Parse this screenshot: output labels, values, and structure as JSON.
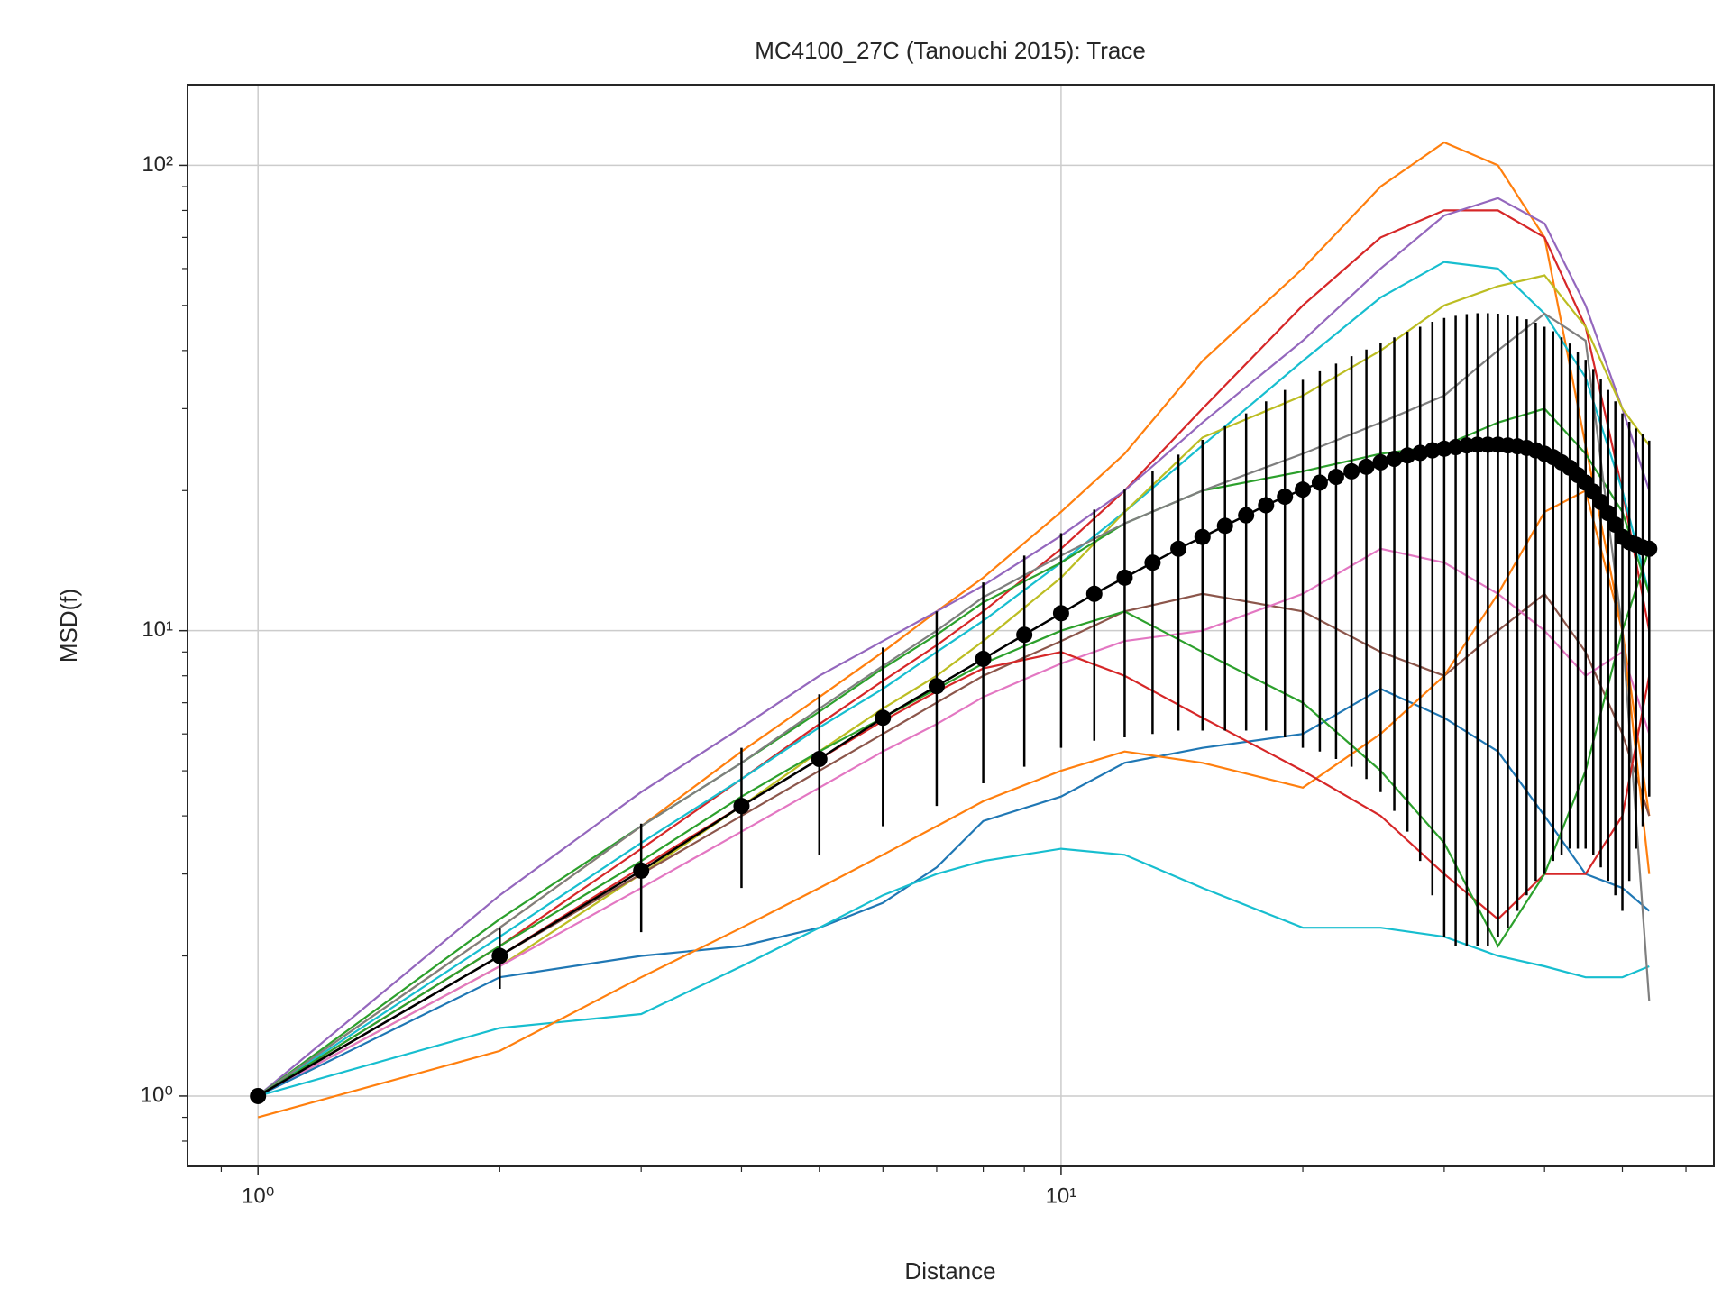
{
  "chart_data": {
    "type": "line",
    "title": "MC4100_27C (Tanouchi 2015): Trace",
    "x_label": "Distance",
    "y_label": "MSD(f)",
    "xscale": "log",
    "yscale": "log",
    "grid": true,
    "xlim": [
      0.817,
      65
    ],
    "ylim": [
      0.706,
      149
    ],
    "xticks": [
      {
        "value": 1,
        "label": "10⁰"
      },
      {
        "value": 10,
        "label": "10¹"
      }
    ],
    "yticks": [
      {
        "value": 1,
        "label": "10⁰"
      },
      {
        "value": 10,
        "label": "10¹"
      },
      {
        "value": 100,
        "label": "10²"
      }
    ],
    "xminorticks": [
      0.9,
      2,
      3,
      4,
      5,
      6,
      7,
      8,
      9,
      20,
      30,
      40,
      50,
      60
    ],
    "yminorticks": [
      0.8,
      0.9,
      2,
      3,
      4,
      5,
      6,
      7,
      8,
      9,
      20,
      30,
      40,
      50,
      60,
      70,
      80,
      90
    ],
    "x": [
      1,
      2,
      3,
      4,
      5,
      6,
      7,
      8,
      10,
      12,
      15,
      20,
      25,
      30,
      35,
      40,
      45,
      50,
      54
    ],
    "series": [
      {
        "color": "#ff7f0e",
        "values": [
          1,
          2.3,
          3.8,
          5.5,
          7.2,
          9,
          11,
          13,
          18,
          24,
          38,
          60,
          90,
          112,
          100,
          70,
          25,
          10,
          4
        ]
      },
      {
        "color": "#d62728",
        "values": [
          1,
          2.1,
          3.4,
          4.8,
          6.3,
          7.8,
          9.3,
          11,
          15,
          20,
          30,
          50,
          70,
          80,
          80,
          70,
          45,
          20,
          10
        ]
      },
      {
        "color": "#9467bd",
        "values": [
          1,
          2.7,
          4.5,
          6.2,
          8,
          9.5,
          11,
          12.5,
          16,
          20,
          28,
          42,
          60,
          78,
          85,
          75,
          50,
          30,
          20
        ]
      },
      {
        "color": "#17becf",
        "values": [
          1,
          2.2,
          3.5,
          4.8,
          6.2,
          7.5,
          9,
          10.5,
          14,
          18,
          25,
          38,
          52,
          62,
          60,
          48,
          35,
          20,
          12
        ]
      },
      {
        "color": "#bcbd22",
        "values": [
          1,
          1.9,
          3,
          4.2,
          5.5,
          6.8,
          8,
          9.5,
          13,
          18,
          26,
          32,
          40,
          50,
          55,
          58,
          45,
          30,
          25
        ]
      },
      {
        "color": "#2ca02c",
        "values": [
          1,
          2.4,
          3.8,
          5.2,
          6.7,
          8.3,
          9.8,
          11.5,
          14,
          17,
          20,
          22,
          24,
          25,
          28,
          30,
          24,
          18,
          12
        ]
      },
      {
        "color": "#8c564b",
        "values": [
          1,
          2,
          3,
          4,
          5,
          6,
          7,
          8,
          9.5,
          11,
          12,
          11,
          9,
          8,
          10,
          12,
          9,
          6,
          4
        ]
      },
      {
        "color": "#e377c2",
        "values": [
          1,
          1.9,
          2.8,
          3.7,
          4.6,
          5.5,
          6.3,
          7.2,
          8.5,
          9.5,
          10,
          12,
          15,
          14,
          12,
          10,
          8,
          9,
          6
        ]
      },
      {
        "color": "#1f77b4",
        "values": [
          1,
          1.8,
          2,
          2.1,
          2.3,
          2.6,
          3.1,
          3.9,
          4.4,
          5.2,
          5.6,
          6,
          7.5,
          6.5,
          5.5,
          4,
          3,
          2.8,
          2.5
        ]
      },
      {
        "color": "#17becf",
        "values": [
          1,
          1.4,
          1.5,
          1.9,
          2.3,
          2.7,
          3,
          3.2,
          3.4,
          3.3,
          2.8,
          2.3,
          2.3,
          2.2,
          2,
          1.9,
          1.8,
          1.8,
          1.9
        ]
      },
      {
        "color": "#ff7f0e",
        "values": [
          0.9,
          1.25,
          1.8,
          2.3,
          2.8,
          3.3,
          3.8,
          4.3,
          5,
          5.5,
          5.2,
          4.6,
          6,
          8,
          12,
          18,
          20,
          10,
          3
        ]
      },
      {
        "color": "#7f7f7f",
        "values": [
          1,
          2.3,
          3.8,
          5.2,
          6.8,
          8.4,
          10,
          11.8,
          14.5,
          17,
          20,
          24,
          28,
          32,
          40,
          48,
          42,
          10,
          1.6
        ]
      },
      {
        "color": "#d62728",
        "values": [
          1,
          2,
          3.1,
          4.2,
          5.3,
          6.4,
          7.4,
          8.3,
          9,
          8,
          6.5,
          5,
          4,
          3,
          2.4,
          3,
          3,
          4,
          8
        ]
      },
      {
        "color": "#2ca02c",
        "values": [
          1,
          2.1,
          3.2,
          4.4,
          5.5,
          6.5,
          7.5,
          8.5,
          10,
          11,
          9,
          7,
          5,
          3.5,
          2.1,
          3,
          5,
          10,
          15
        ]
      }
    ],
    "mean": {
      "color": "#000000",
      "x": [
        1,
        2,
        3,
        4,
        5,
        6,
        7,
        8,
        9,
        10,
        11,
        12,
        13,
        14,
        15,
        16,
        17,
        18,
        19,
        20,
        21,
        22,
        23,
        24,
        25,
        26,
        27,
        28,
        29,
        30,
        31,
        32,
        33,
        34,
        35,
        36,
        37,
        38,
        39,
        40,
        41,
        42,
        43,
        44,
        45,
        46,
        47,
        48,
        49,
        50,
        51,
        52,
        53,
        54
      ],
      "values": [
        1,
        2.0,
        3.05,
        4.2,
        5.3,
        6.5,
        7.6,
        8.7,
        9.8,
        10.9,
        12.0,
        13.0,
        14.0,
        15.0,
        15.9,
        16.8,
        17.7,
        18.6,
        19.4,
        20.1,
        20.8,
        21.4,
        22.0,
        22.5,
        23.0,
        23.4,
        23.8,
        24.1,
        24.4,
        24.6,
        24.8,
        25.0,
        25.1,
        25.1,
        25.1,
        25.0,
        24.9,
        24.7,
        24.4,
        24.0,
        23.6,
        23.0,
        22.4,
        21.6,
        20.8,
        19.9,
        18.9,
        17.9,
        16.9,
        15.9,
        15.5,
        15.3,
        15.1,
        15.0
      ],
      "errors": [
        0,
        0.3,
        0.8,
        1.4,
        2.0,
        2.7,
        3.4,
        4.0,
        4.7,
        5.3,
        6.2,
        7.1,
        8.0,
        8.9,
        9.8,
        10.7,
        11.6,
        12.5,
        13.5,
        14.5,
        15.3,
        16.1,
        16.9,
        17.7,
        18.5,
        19.3,
        20.1,
        20.9,
        21.7,
        22.4,
        22.7,
        22.9,
        23.0,
        23.0,
        22.9,
        22.7,
        22.4,
        22.0,
        21.5,
        21.0,
        20.4,
        19.7,
        19.0,
        18.2,
        17.4,
        16.6,
        15.8,
        15.0,
        14.2,
        13.4,
        12.6,
        11.9,
        11.3,
        10.6
      ]
    }
  }
}
